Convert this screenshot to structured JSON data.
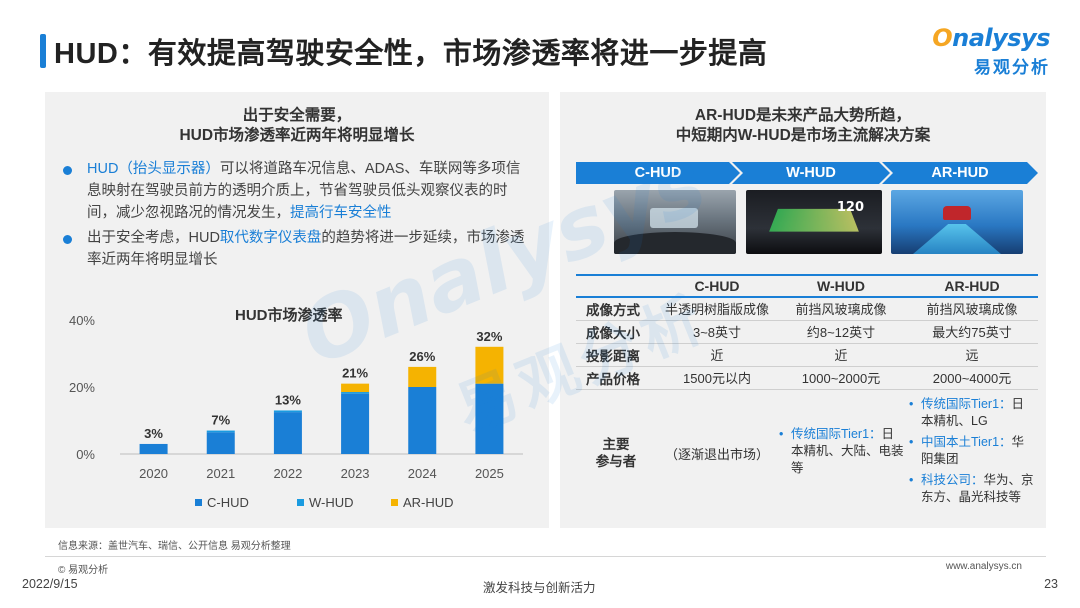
{
  "header": {
    "title": "HUD：有效提高驾驶安全性，市场渗透率将进一步提高",
    "logo_en": "nalysys",
    "logo_en_prefix": "O",
    "logo_cn": "易观分析"
  },
  "left_panel": {
    "heading_line1": "出于安全需要，",
    "heading_line2": "HUD市场渗透率近两年将明显增长",
    "bullet1": {
      "term": "HUD（抬头显示器）",
      "text": "可以将道路车况信息、ADAS、车联网等多项信息映射在驾驶员前方的透明介质上，节省驾驶员低头观察仪表的时间，减少忽视路况的情况发生，",
      "highlight": "提高行车安全性"
    },
    "bullet2": {
      "prefix": "出于安全考虑，HUD",
      "highlight": "取代数字仪表盘",
      "suffix": "的趋势将进一步延续，市场渗透率近两年将明显增长"
    }
  },
  "chart_data": {
    "type": "bar",
    "stacked": true,
    "title": "HUD市场渗透率",
    "categories": [
      "2020",
      "2021",
      "2022",
      "2023",
      "2024",
      "2025"
    ],
    "series": [
      {
        "name": "C-HUD",
        "color": "#1a7fd6",
        "values": [
          3,
          6.5,
          12.5,
          18,
          20,
          21
        ]
      },
      {
        "name": "W-HUD",
        "color": "#1a9be0",
        "values": [
          0,
          0.5,
          0.5,
          0.5,
          0,
          0
        ]
      },
      {
        "name": "AR-HUD",
        "color": "#f5b301",
        "values": [
          0,
          0,
          0,
          2.5,
          6,
          11
        ]
      }
    ],
    "totals_labels": [
      "3%",
      "7%",
      "13%",
      "21%",
      "26%",
      "32%"
    ],
    "y_ticks": [
      "0%",
      "20%",
      "40%"
    ],
    "ylim": [
      0,
      40
    ],
    "grid": false,
    "legend_placement": "bottom"
  },
  "right_panel": {
    "heading_line1": "AR-HUD是未来产品大势所趋，",
    "heading_line2": "中短期内W-HUD是市场主流解决方案",
    "arrows": [
      "C-HUD",
      "W-HUD",
      "AR-HUD"
    ],
    "photo_speed": "120",
    "table": {
      "headers": [
        "",
        "C-HUD",
        "W-HUD",
        "AR-HUD"
      ],
      "rows": [
        [
          "成像方式",
          "半透明树脂版成像",
          "前挡风玻璃成像",
          "前挡风玻璃成像"
        ],
        [
          "成像大小",
          "3~8英寸",
          "约8~12英寸",
          "最大约75英寸"
        ],
        [
          "投影距离",
          "近",
          "近",
          "远"
        ],
        [
          "产品价格",
          "1500元以内",
          "1000~2000元",
          "2000~4000元"
        ]
      ],
      "players_label_line1": "主要",
      "players_label_line2": "参与者",
      "players_chud": "（逐渐退出市场）",
      "players_whud": [
        {
          "label": "传统国际Tier1：",
          "text": "日本精机、大陆、电装等"
        }
      ],
      "players_arhud": [
        {
          "label": "传统国际Tier1：",
          "text": "日本精机、LG"
        },
        {
          "label": "中国本土Tier1：",
          "text": "华阳集团"
        },
        {
          "label": "科技公司：",
          "text": "华为、京东方、晶光科技等"
        }
      ]
    }
  },
  "footer": {
    "source": "信息来源：盖世汽车、瑞信、公开信息 易观分析整理",
    "copyright": "© 易观分析",
    "website": "www.analysys.cn",
    "date": "2022/9/15",
    "slogan": "激发科技与创新活力",
    "page": "23"
  },
  "watermark": {
    "en": "Onalysys",
    "cn": "易观分析"
  }
}
